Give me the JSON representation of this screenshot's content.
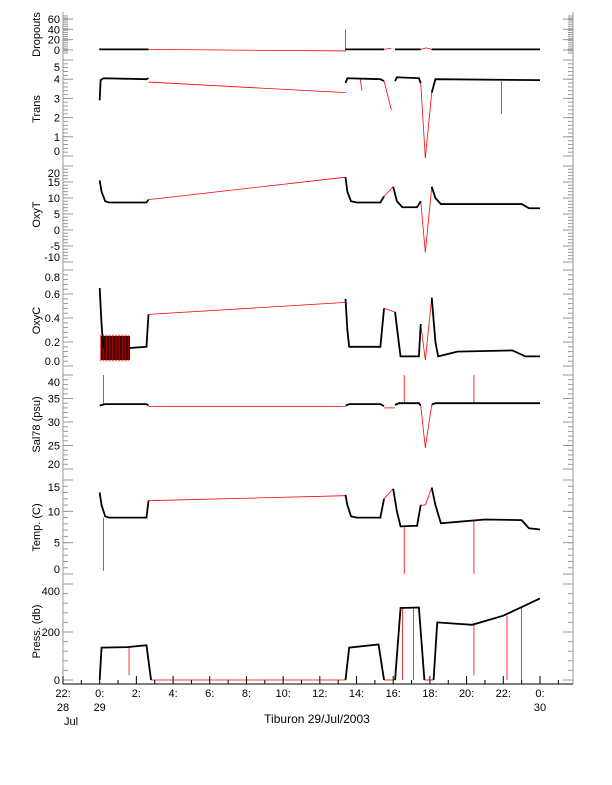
{
  "chart_data": [
    {
      "type": "line",
      "ylabel": "Dropouts",
      "ylim": [
        -6,
        66
      ],
      "yticks": [
        0,
        20,
        40,
        60
      ],
      "black": [
        [
          [
            0,
            1
          ],
          [
            2.66,
            1
          ]
        ],
        [
          [
            13.4,
            1
          ],
          [
            15.5,
            1
          ]
        ],
        [
          [
            16.1,
            1
          ],
          [
            17.5,
            1
          ]
        ],
        [
          [
            18.1,
            1
          ],
          [
            24,
            1
          ]
        ]
      ],
      "red": [
        [
          [
            0,
            -1
          ],
          [
            0,
            4
          ]
        ],
        [
          [
            2.66,
            1
          ],
          [
            13.4,
            -2
          ]
        ],
        [
          [
            13.4,
            -2
          ],
          [
            13.4,
            40
          ]
        ],
        [
          [
            15.5,
            1
          ],
          [
            15.9,
            3
          ]
        ],
        [
          [
            17.5,
            1
          ],
          [
            17.8,
            4
          ]
        ],
        [
          [
            17.8,
            4
          ],
          [
            18.1,
            1
          ]
        ]
      ]
    },
    {
      "type": "line",
      "ylabel": "Trans",
      "ylim": [
        0,
        5
      ],
      "yticks": [
        0,
        1,
        2,
        3,
        4,
        5
      ],
      "black": [
        [
          [
            0,
            2.9
          ],
          [
            0.05,
            3.95
          ],
          [
            0.2,
            4.05
          ],
          [
            2.55,
            4.0
          ],
          [
            2.66,
            4.05
          ]
        ],
        [
          [
            13.4,
            3.8
          ],
          [
            13.5,
            4.05
          ],
          [
            15.3,
            4.0
          ],
          [
            15.5,
            3.9
          ]
        ],
        [
          [
            16.1,
            3.9
          ],
          [
            16.2,
            4.1
          ],
          [
            17.4,
            4.05
          ],
          [
            17.5,
            3.8
          ]
        ],
        [
          [
            18.1,
            3.3
          ],
          [
            18.3,
            4.0
          ],
          [
            24,
            3.95
          ]
        ]
      ],
      "red": [
        [
          [
            2.66,
            3.85
          ],
          [
            13.4,
            3.3
          ]
        ],
        [
          [
            14.2,
            4.0
          ],
          [
            14.3,
            3.4
          ]
        ],
        [
          [
            15.5,
            3.9
          ],
          [
            15.9,
            2.4
          ]
        ],
        [
          [
            17.5,
            3.8
          ],
          [
            17.75,
            -0.1
          ]
        ],
        [
          [
            17.75,
            -0.1
          ],
          [
            18.1,
            3.3
          ]
        ],
        [
          [
            21.9,
            3.9
          ],
          [
            21.9,
            2.2
          ]
        ]
      ]
    },
    {
      "type": "line",
      "ylabel": "OxyT",
      "ylim": [
        -10,
        20
      ],
      "yticks": [
        -10,
        -5,
        0,
        5,
        10,
        15,
        20
      ],
      "black": [
        [
          [
            0,
            15.5
          ],
          [
            0.1,
            12
          ],
          [
            0.3,
            9
          ],
          [
            0.5,
            8.6
          ],
          [
            2.55,
            8.6
          ],
          [
            2.66,
            9.5
          ]
        ],
        [
          [
            13.4,
            16.5
          ],
          [
            13.5,
            12
          ],
          [
            13.7,
            9
          ],
          [
            14,
            8.6
          ],
          [
            15.3,
            8.6
          ],
          [
            15.5,
            10.5
          ]
        ],
        [
          [
            16.0,
            13.5
          ],
          [
            16.2,
            9
          ],
          [
            16.5,
            7.1
          ],
          [
            17.3,
            7.1
          ],
          [
            17.5,
            9
          ]
        ],
        [
          [
            18.1,
            13.5
          ],
          [
            18.3,
            10
          ],
          [
            18.6,
            8.1
          ],
          [
            23,
            8.1
          ],
          [
            23.4,
            6.8
          ],
          [
            24,
            6.8
          ]
        ]
      ],
      "red": [
        [
          [
            2.66,
            9.5
          ],
          [
            13.4,
            16.5
          ]
        ],
        [
          [
            15.5,
            10.5
          ],
          [
            16.0,
            13.5
          ]
        ],
        [
          [
            17.5,
            9
          ],
          [
            17.75,
            -7
          ]
        ],
        [
          [
            17.75,
            -7
          ],
          [
            18.1,
            13.5
          ]
        ]
      ]
    },
    {
      "type": "line",
      "ylabel": "OxyC",
      "ylim": [
        0,
        0.8
      ],
      "yticks": [
        0.0,
        0.2,
        0.4,
        0.6,
        0.8
      ],
      "band": [
        0.05,
        1.65,
        0.05,
        0.25
      ],
      "black": [
        [
          [
            0,
            0.65
          ],
          [
            0.1,
            0.35
          ],
          [
            0.2,
            0.15
          ]
        ],
        [
          [
            1.65,
            0.15
          ],
          [
            2.55,
            0.16
          ],
          [
            2.66,
            0.43
          ]
        ],
        [
          [
            13.4,
            0.56
          ],
          [
            13.5,
            0.3
          ],
          [
            13.6,
            0.16
          ],
          [
            15.3,
            0.16
          ],
          [
            15.5,
            0.48
          ]
        ],
        [
          [
            16.1,
            0.45
          ],
          [
            16.3,
            0.2
          ],
          [
            16.4,
            0.08
          ],
          [
            17.4,
            0.08
          ],
          [
            17.5,
            0.35
          ]
        ],
        [
          [
            18.1,
            0.57
          ],
          [
            18.3,
            0.2
          ],
          [
            18.45,
            0.08
          ],
          [
            19.5,
            0.12
          ],
          [
            22.5,
            0.13
          ],
          [
            23.2,
            0.08
          ],
          [
            24,
            0.08
          ]
        ]
      ],
      "red": [
        [
          [
            2.66,
            0.43
          ],
          [
            13.4,
            0.53
          ]
        ],
        [
          [
            15.5,
            0.48
          ],
          [
            16.1,
            0.45
          ]
        ],
        [
          [
            17.5,
            0.35
          ],
          [
            17.75,
            0.05
          ]
        ],
        [
          [
            17.75,
            0.05
          ],
          [
            18.1,
            0.57
          ]
        ]
      ]
    },
    {
      "type": "line",
      "ylabel": "Sal78 (psu)",
      "ylim": [
        20,
        40
      ],
      "yticks": [
        20,
        25,
        30,
        35,
        40
      ],
      "black": [
        [
          [
            0,
            33.5
          ],
          [
            0.3,
            33.8
          ],
          [
            2.55,
            33.8
          ],
          [
            2.66,
            33.5
          ]
        ],
        [
          [
            13.4,
            33.5
          ],
          [
            13.6,
            33.8
          ],
          [
            15.3,
            33.8
          ],
          [
            15.5,
            33.4
          ]
        ],
        [
          [
            16.1,
            33.6
          ],
          [
            16.3,
            34
          ],
          [
            17.4,
            34
          ],
          [
            17.5,
            33.5
          ]
        ],
        [
          [
            18.1,
            33.7
          ],
          [
            18.3,
            34
          ],
          [
            24,
            34
          ]
        ]
      ],
      "red": [
        [
          [
            0.2,
            33.8
          ],
          [
            0.2,
            40
          ]
        ],
        [
          [
            2.66,
            33.3
          ],
          [
            13.4,
            33.3
          ]
        ],
        [
          [
            15.5,
            33
          ],
          [
            16.1,
            33
          ]
        ],
        [
          [
            16.6,
            34
          ],
          [
            16.6,
            40
          ]
        ],
        [
          [
            17.5,
            33.5
          ],
          [
            17.75,
            24.5
          ]
        ],
        [
          [
            17.75,
            24.5
          ],
          [
            18.1,
            33.7
          ]
        ],
        [
          [
            20.4,
            34
          ],
          [
            20.4,
            40
          ]
        ]
      ]
    },
    {
      "type": "line",
      "ylabel": "Temp. (C)",
      "ylim": [
        0,
        15
      ],
      "yticks": [
        0,
        5,
        10,
        15
      ],
      "black": [
        [
          [
            0,
            13
          ],
          [
            0.1,
            11
          ],
          [
            0.3,
            9.2
          ],
          [
            0.5,
            9
          ],
          [
            2.55,
            9
          ],
          [
            2.66,
            11.7
          ]
        ],
        [
          [
            13.4,
            12.6
          ],
          [
            13.5,
            11
          ],
          [
            13.7,
            9.2
          ],
          [
            14,
            9
          ],
          [
            15.3,
            9
          ],
          [
            15.5,
            12
          ]
        ],
        [
          [
            16.0,
            13.6
          ],
          [
            16.2,
            10
          ],
          [
            16.4,
            7.6
          ],
          [
            17.3,
            7.7
          ],
          [
            17.5,
            11
          ]
        ],
        [
          [
            18.1,
            13.8
          ],
          [
            18.3,
            11
          ],
          [
            18.6,
            8.1
          ],
          [
            21,
            8.7
          ],
          [
            23,
            8.6
          ],
          [
            23.4,
            7.3
          ],
          [
            24,
            7.1
          ]
        ]
      ],
      "red": [
        [
          [
            0.2,
            9
          ],
          [
            0.2,
            0.5
          ]
        ],
        [
          [
            2.66,
            11.7
          ],
          [
            13.4,
            12.5
          ]
        ],
        [
          [
            15.5,
            12
          ],
          [
            16.0,
            13.6
          ]
        ],
        [
          [
            16.6,
            7.6
          ],
          [
            16.6,
            0
          ]
        ],
        [
          [
            17.5,
            11
          ],
          [
            17.75,
            11
          ]
        ],
        [
          [
            17.75,
            11
          ],
          [
            18.1,
            13.8
          ]
        ],
        [
          [
            20.4,
            8.6
          ],
          [
            20.4,
            0
          ]
        ]
      ]
    },
    {
      "type": "line",
      "ylabel": "Press. (db)",
      "ylim": [
        0,
        400
      ],
      "yticks": [
        0,
        200,
        400
      ],
      "black": [
        [
          [
            0,
            0
          ],
          [
            0.1,
            135
          ],
          [
            1.5,
            137
          ],
          [
            2.55,
            145
          ],
          [
            2.8,
            0
          ]
        ],
        [
          [
            13.4,
            0
          ],
          [
            13.6,
            135
          ],
          [
            15.2,
            148
          ],
          [
            15.5,
            0
          ]
        ],
        [
          [
            16.1,
            0
          ],
          [
            16.4,
            300
          ],
          [
            17.4,
            302
          ],
          [
            17.7,
            0
          ]
        ],
        [
          [
            18.2,
            0
          ],
          [
            18.4,
            240
          ],
          [
            20.3,
            230
          ],
          [
            21.2,
            250
          ],
          [
            22,
            268
          ],
          [
            24,
            340
          ]
        ]
      ],
      "red": [
        [
          [
            2.8,
            0
          ],
          [
            13.4,
            0
          ]
        ],
        [
          [
            15.5,
            0
          ],
          [
            16.1,
            0
          ]
        ],
        [
          [
            17.7,
            0
          ],
          [
            18.2,
            0
          ]
        ],
        [
          [
            1.6,
            137
          ],
          [
            1.6,
            20
          ]
        ],
        [
          [
            16.5,
            300
          ],
          [
            16.5,
            0
          ]
        ],
        [
          [
            17.1,
            300
          ],
          [
            17.1,
            0
          ]
        ],
        [
          [
            20.4,
            230
          ],
          [
            20.4,
            20
          ]
        ],
        [
          [
            22.2,
            268
          ],
          [
            22.2,
            0
          ]
        ],
        [
          [
            23.0,
            300
          ],
          [
            23.0,
            0
          ]
        ]
      ]
    }
  ],
  "x_axis": {
    "xlim": [
      -2,
      25.8
    ],
    "ticks": [
      {
        "h": -2,
        "l1": "22:",
        "l2": "28",
        "l3": "Jul"
      },
      {
        "h": 0,
        "l1": "0:",
        "l2": "29",
        "l3": ""
      },
      {
        "h": 2,
        "l1": "2:",
        "l2": "",
        "l3": ""
      },
      {
        "h": 4,
        "l1": "4:",
        "l2": "",
        "l3": ""
      },
      {
        "h": 6,
        "l1": "6:",
        "l2": "",
        "l3": ""
      },
      {
        "h": 8,
        "l1": "8:",
        "l2": "",
        "l3": ""
      },
      {
        "h": 10,
        "l1": "10:",
        "l2": "",
        "l3": ""
      },
      {
        "h": 12,
        "l1": "12:",
        "l2": "",
        "l3": ""
      },
      {
        "h": 14,
        "l1": "14:",
        "l2": "",
        "l3": ""
      },
      {
        "h": 16,
        "l1": "16:",
        "l2": "",
        "l3": ""
      },
      {
        "h": 18,
        "l1": "18:",
        "l2": "",
        "l3": ""
      },
      {
        "h": 20,
        "l1": "20:",
        "l2": "",
        "l3": ""
      },
      {
        "h": 22,
        "l1": "22:",
        "l2": "",
        "l3": ""
      },
      {
        "h": 24,
        "l1": "0:",
        "l2": "30",
        "l3": ""
      }
    ],
    "title": "Tiburon 29/Jul/2003"
  },
  "colors": {
    "data": "#000000",
    "interpolated": "#ff0000",
    "axis": "#999999"
  }
}
